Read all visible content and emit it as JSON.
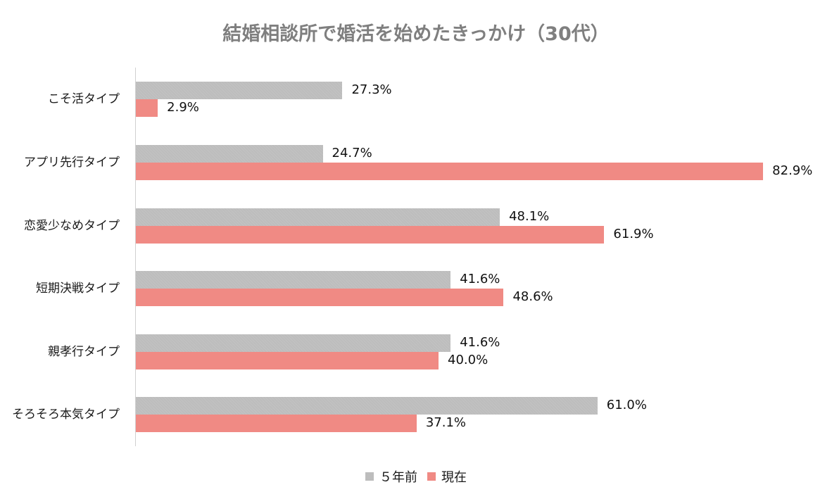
{
  "chart_data": {
    "type": "bar",
    "orientation": "horizontal",
    "title": "結婚相談所で婚活を始めたきっかけ（30代）",
    "xlabel": "",
    "ylabel": "",
    "categories": [
      "こそ活タイプ",
      "アプリ先行タイプ",
      "恋愛少なめタイプ",
      "短期決戦タイプ",
      "親孝行タイプ",
      "そろそろ本気タイプ"
    ],
    "series": [
      {
        "name": "５年前",
        "color": "#bdbdbd",
        "values": [
          27.3,
          24.7,
          48.1,
          41.6,
          41.6,
          61.0
        ],
        "labels": [
          "27.3%",
          "24.7%",
          "48.1%",
          "41.6%",
          "41.6%",
          "61.0%"
        ]
      },
      {
        "name": "現在",
        "color": "#f08a84",
        "values": [
          2.9,
          82.9,
          61.9,
          48.6,
          40.0,
          37.1
        ],
        "labels": [
          "2.9%",
          "82.9%",
          "61.9%",
          "48.6%",
          "40.0%",
          "37.1%"
        ]
      }
    ],
    "xlim": [
      0,
      90
    ],
    "grid": false,
    "axis_ticks_visible": false,
    "data_labels": true,
    "legend_position": "bottom"
  },
  "legend": {
    "items": [
      {
        "label": "５年前",
        "color": "#bdbdbd"
      },
      {
        "label": "現在",
        "color": "#f08a84"
      }
    ]
  }
}
